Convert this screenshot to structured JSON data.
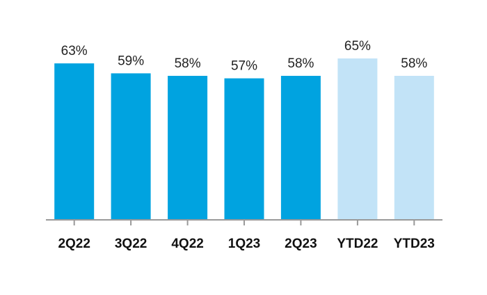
{
  "chart_data": {
    "type": "bar",
    "categories": [
      "2Q22",
      "3Q22",
      "4Q22",
      "1Q23",
      "2Q23",
      "YTD22",
      "YTD23"
    ],
    "values": [
      63,
      59,
      58,
      57,
      58,
      65,
      58
    ],
    "value_labels": [
      "63%",
      "59%",
      "58%",
      "57%",
      "58%",
      "65%",
      "58%"
    ],
    "title": "",
    "xlabel": "",
    "ylabel": "",
    "ylim": [
      0,
      65
    ],
    "grid": false,
    "legend": "none",
    "bar_colors": [
      "#00a3e0",
      "#00a3e0",
      "#00a3e0",
      "#00a3e0",
      "#00a3e0",
      "#c2e3f7",
      "#c2e3f7"
    ],
    "axis_color": "#999999"
  }
}
